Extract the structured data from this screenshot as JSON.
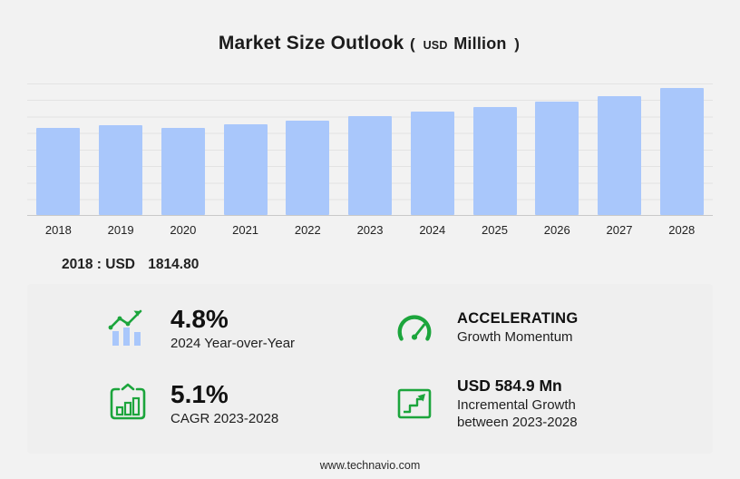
{
  "title": {
    "main": "Market Size Outlook",
    "paren_open": "(",
    "currency": "USD",
    "unit": "Million",
    "paren_close": ")"
  },
  "chart_data": {
    "type": "bar",
    "title": "Market Size Outlook (USD Million)",
    "categories": [
      "2018",
      "2019",
      "2020",
      "2021",
      "2022",
      "2023",
      "2024",
      "2025",
      "2026",
      "2027",
      "2028"
    ],
    "values": [
      1814.8,
      1880,
      1820,
      1890,
      1970,
      2071.9,
      2171.3,
      2260,
      2370,
      2490,
      2656.8
    ],
    "xlabel": "",
    "ylabel": "USD Million",
    "ylim": [
      0,
      2750
    ],
    "grid": true,
    "legend": "none",
    "bar_color": "#a9c7fb"
  },
  "annotation": {
    "label": "2018 : USD",
    "value": "1814.80"
  },
  "stats": [
    {
      "icon": "bar-growth-icon",
      "value": "4.8%",
      "label": "2024 Year-over-Year"
    },
    {
      "icon": "speedometer-icon",
      "value": "ACCELERATING",
      "label": "Growth Momentum"
    },
    {
      "icon": "chart-frame-icon",
      "value": "5.1%",
      "label": "CAGR 2023-2028"
    },
    {
      "icon": "step-growth-icon",
      "value": "USD 584.9 Mn",
      "label": "Incremental Growth between 2023-2028"
    }
  ],
  "footer": {
    "url": "www.technavio.com"
  },
  "colors": {
    "background": "#f2f2f2",
    "bar_blue": "#a9c7fb",
    "accent_green": "#1ca53c"
  }
}
